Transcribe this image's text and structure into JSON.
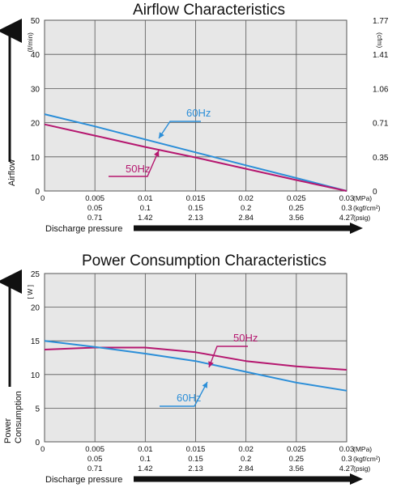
{
  "chart_data": [
    {
      "type": "line",
      "title": "Airflow Characteristics",
      "ylabel": "Airflow",
      "ylabel_unit": "(ℓ/min)",
      "y2label_unit": "(cfm)",
      "ylim": [
        0,
        50
      ],
      "yticks": [
        "0",
        "10",
        "20",
        "30",
        "40",
        "50"
      ],
      "y2ticks": [
        "0",
        "0.35",
        "0.71",
        "1.06",
        "1.41",
        "1.77"
      ],
      "x": [
        0,
        0.005,
        0.01,
        0.015,
        0.02,
        0.025,
        0.03
      ],
      "xlim": [
        0,
        0.03
      ],
      "series": [
        {
          "name": "60Hz",
          "color": "#2b8ed8",
          "values": [
            22.5,
            18.9,
            15.1,
            11.3,
            7.5,
            3.8,
            0
          ]
        },
        {
          "name": "50Hz",
          "color": "#b5176f",
          "values": [
            19.5,
            16.2,
            12.9,
            9.8,
            6.5,
            3.2,
            0
          ]
        }
      ]
    },
    {
      "type": "line",
      "title": "Power Consumption Characteristics",
      "ylabel": "Power Consumption",
      "ylabel_unit": "[ W ]",
      "ylim": [
        0,
        25
      ],
      "yticks": [
        "0",
        "5",
        "10",
        "15",
        "20",
        "25"
      ],
      "x": [
        0,
        0.005,
        0.01,
        0.015,
        0.02,
        0.025,
        0.03
      ],
      "xlim": [
        0,
        0.03
      ],
      "series": [
        {
          "name": "50Hz",
          "color": "#b5176f",
          "values": [
            13.7,
            14.0,
            14.0,
            13.3,
            12.0,
            11.2,
            10.7
          ]
        },
        {
          "name": "60Hz",
          "color": "#2b8ed8",
          "values": [
            15.0,
            14.1,
            13.1,
            12.0,
            10.4,
            8.8,
            7.6
          ]
        }
      ]
    }
  ],
  "x_axis": {
    "label": "Discharge pressure",
    "rows": [
      {
        "unit": "(MPa)",
        "ticks": [
          "0",
          "0.005",
          "0.01",
          "0.015",
          "0.02",
          "0.025",
          "0.03"
        ]
      },
      {
        "unit": "(kgf/cm²)",
        "ticks": [
          "",
          "0.05",
          "0.1",
          "0.15",
          "0.2",
          "0.25",
          "0.3"
        ]
      },
      {
        "unit": "(psig)",
        "ticks": [
          "",
          "0.71",
          "1.42",
          "2.13",
          "2.84",
          "3.56",
          "4.27"
        ]
      }
    ]
  },
  "colors": {
    "grid_bg": "#e7e7e7",
    "grid_line": "#555555",
    "s60": "#2b8ed8",
    "s50": "#b5176f"
  }
}
